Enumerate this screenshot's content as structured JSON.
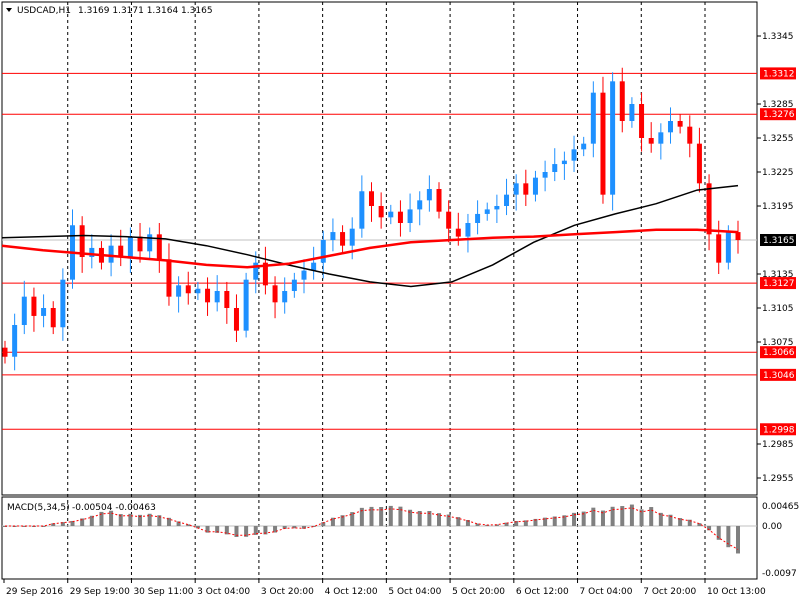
{
  "header": {
    "symbol": "USDCAD,H1",
    "ohlc": "1.3169 1.3171 1.3164 1.3165"
  },
  "macd": {
    "label": "MACD(5,34,5)",
    "values": "-0.00504 -0.00463",
    "ticks": [
      "0.00465",
      "0.00",
      "-0.0097"
    ]
  },
  "colors": {
    "bull": "#1e90ff",
    "bear": "#ff0000",
    "ma_slow": "#000000",
    "ma_red": "#ff0000",
    "hline": "#ff0000",
    "grid": "#000000",
    "histogram": "#808080",
    "signal": "#ff0000"
  },
  "chart_data": {
    "type": "candlestick",
    "symbol": "USDCAD",
    "timeframe": "H1",
    "ylim": [
      1.294,
      1.3375
    ],
    "y_ticks": [
      "1.3345",
      "1.3285",
      "1.3255",
      "1.3225",
      "1.3195",
      "1.3135",
      "1.3105",
      "1.3075",
      "1.2985",
      "1.2955"
    ],
    "x_ticks": [
      "29 Sep 2016",
      "29 Sep 19:00",
      "30 Sep 11:00",
      "3 Oct 04:00",
      "3 Oct 20:00",
      "4 Oct 12:00",
      "5 Oct 04:00",
      "5 Oct 20:00",
      "6 Oct 12:00",
      "7 Oct 04:00",
      "7 Oct 20:00",
      "10 Oct 13:00"
    ],
    "current_price": "1.3165",
    "horizontal_levels": [
      "1.3312",
      "1.3276",
      "1.3127",
      "1.3066",
      "1.3046",
      "1.2998"
    ],
    "closes": [
      1.3062,
      1.309,
      1.3115,
      1.3098,
      1.3105,
      1.3088,
      1.313,
      1.3178,
      1.315,
      1.3158,
      1.3145,
      1.316,
      1.315,
      1.3168,
      1.3155,
      1.317,
      1.3148,
      1.3115,
      1.3125,
      1.3118,
      1.3122,
      1.311,
      1.312,
      1.3105,
      1.3085,
      1.313,
      1.3145,
      1.3125,
      1.311,
      1.312,
      1.313,
      1.3138,
      1.3145,
      1.3165,
      1.3172,
      1.316,
      1.3175,
      1.3208,
      1.3195,
      1.3185,
      1.319,
      1.318,
      1.3192,
      1.32,
      1.321,
      1.319,
      1.3175,
      1.3168,
      1.318,
      1.3188,
      1.3192,
      1.3195,
      1.3205,
      1.3215,
      1.3205,
      1.322,
      1.3225,
      1.3232,
      1.3235,
      1.3245,
      1.325,
      1.3295,
      1.3205,
      1.3305,
      1.327,
      1.3285,
      1.3255,
      1.325,
      1.326,
      1.327,
      1.3265,
      1.325,
      1.3215,
      1.317,
      1.3145,
      1.3172,
      1.3165
    ],
    "moving_averages": [
      {
        "period": "slow",
        "color": "#000000",
        "values": [
          1.3167,
          1.3168,
          1.3169,
          1.3168,
          1.3166,
          1.316,
          1.3152,
          1.3143,
          1.3135,
          1.3128,
          1.3124,
          1.3128,
          1.3143,
          1.3163,
          1.3178,
          1.3188,
          1.3197,
          1.3209,
          1.3213
        ]
      },
      {
        "period": "fast",
        "color": "#ff0000",
        "values": [
          1.316,
          1.3156,
          1.3153,
          1.315,
          1.3147,
          1.3143,
          1.3141,
          1.3144,
          1.3151,
          1.3158,
          1.3163,
          1.3165,
          1.3167,
          1.3168,
          1.317,
          1.3172,
          1.3174,
          1.3174,
          1.3172
        ]
      }
    ]
  }
}
